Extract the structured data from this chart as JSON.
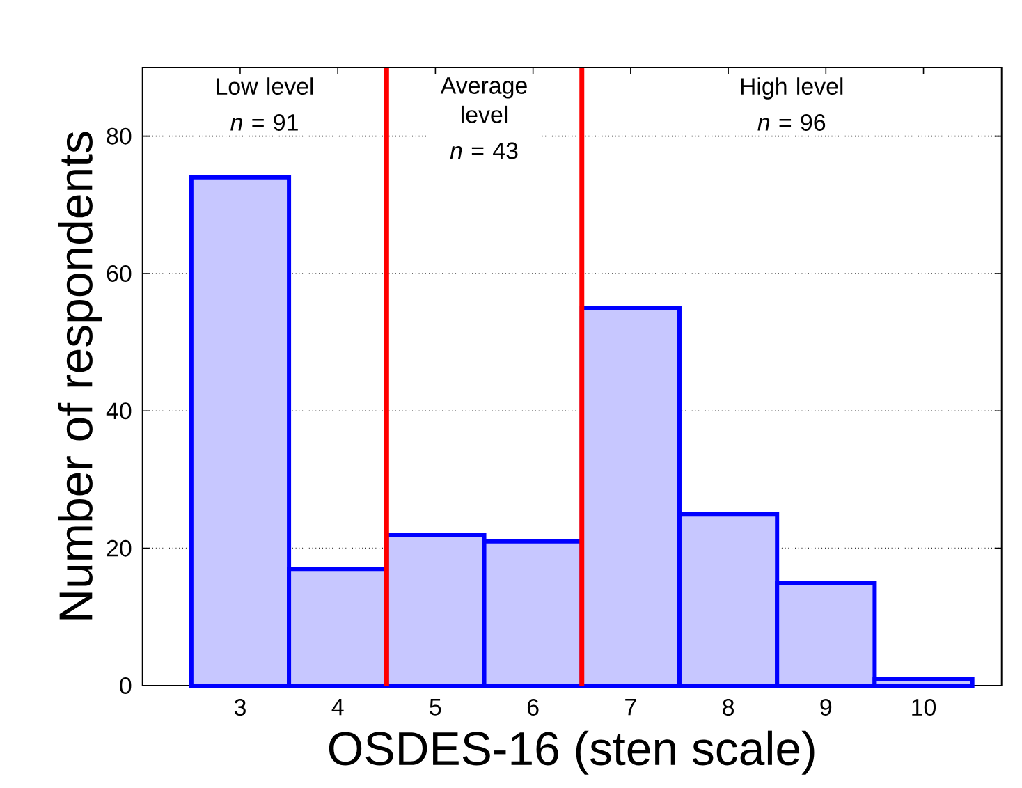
{
  "chart_data": {
    "type": "histogram",
    "xlabel": "OSDES-16 (sten scale)",
    "ylabel": "Number of respondents",
    "bins": [
      2.5,
      3.5,
      4.5,
      5.5,
      6.5,
      7.5,
      8.5,
      9.5,
      10.5
    ],
    "values": [
      74,
      17,
      22,
      21,
      55,
      25,
      15,
      1
    ],
    "color": "#0000ff",
    "xlim": [
      2,
      10.8
    ],
    "xticks": [
      3,
      4,
      5,
      6,
      7,
      8,
      9,
      10
    ],
    "ylim": [
      0,
      90
    ],
    "yticks": [
      0,
      20,
      40,
      60,
      80
    ],
    "grid": "y",
    "ref_lines": [
      {
        "axis": "x",
        "value": 4.5,
        "color": "#ff0000"
      },
      {
        "axis": "x",
        "value": 6.5,
        "color": "#ff0000"
      }
    ],
    "annotations": [
      "Low level",
      "*n* = 91",
      "Average level",
      "*n* = 43",
      "High level",
      "*n* = 96"
    ]
  }
}
